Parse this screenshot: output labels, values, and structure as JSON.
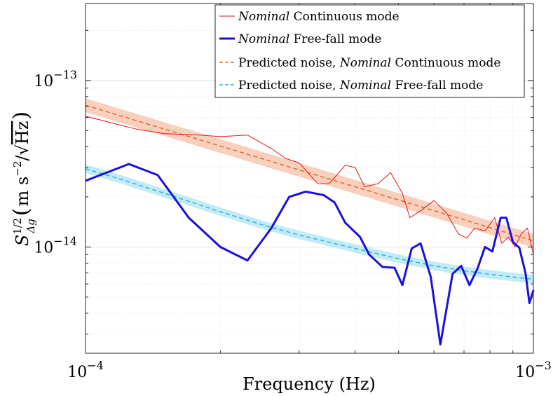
{
  "chart_data": {
    "type": "line",
    "xscale": "log",
    "yscale": "log",
    "xlim": [
      0.0001,
      0.001
    ],
    "ylim": [
      2.3e-15,
      2.9e-13
    ],
    "xlabel": "Frequency (Hz)",
    "ylabel": "S_Δg^1/2 (m s^-2/√Hz)",
    "ylabel_parts": {
      "symbol": "S",
      "superscript": "1/2",
      "subscript": "Δg",
      "units": "m s",
      "unit_exp": "−2",
      "unit_slash": "/",
      "sqrt_sign": "√",
      "sqrt_arg": "Hz",
      "paren_open": "(",
      "paren_close": ")"
    },
    "x_ticks": [
      {
        "value": 0.0001,
        "base": "10",
        "exp": "−4"
      },
      {
        "value": 0.001,
        "base": "10",
        "exp": "−3"
      }
    ],
    "y_ticks": [
      {
        "value": 1e-13,
        "base": "10",
        "exp": "−13"
      },
      {
        "value": 1e-14,
        "base": "10",
        "exp": "−14"
      }
    ],
    "grid": true,
    "legend_position": "top-right",
    "series": [
      {
        "name": "Nominal Continuous mode",
        "label_em": "Nominal",
        "label_rest": " Continuous mode",
        "color": "#ee1111",
        "style": "solid",
        "width": 1,
        "points": [
          [
            0.0001,
            6.1e-14
          ],
          [
            0.00013,
            5.1e-14
          ],
          [
            0.00015,
            4.8e-14
          ],
          [
            0.00018,
            4.7e-14
          ],
          [
            0.0002,
            4.6e-14
          ],
          [
            0.00023,
            4.7e-14
          ],
          [
            0.00026,
            3.9e-14
          ],
          [
            0.00028,
            3.4e-14
          ],
          [
            0.0003,
            3.2e-14
          ],
          [
            0.00033,
            2.4e-14
          ],
          [
            0.00035,
            2.4e-14
          ],
          [
            0.00038,
            3.1e-14
          ],
          [
            0.0004,
            3e-14
          ],
          [
            0.00042,
            2.3e-14
          ],
          [
            0.00045,
            2.4e-14
          ],
          [
            0.00048,
            2.8e-14
          ],
          [
            0.00051,
            2.1e-14
          ],
          [
            0.00053,
            1.5e-14
          ],
          [
            0.00056,
            1.65e-14
          ],
          [
            0.0006,
            1.9e-14
          ],
          [
            0.00064,
            1.6e-14
          ],
          [
            0.00068,
            1.2e-14
          ],
          [
            0.00071,
            1.13e-14
          ],
          [
            0.00074,
            1.3e-14
          ],
          [
            0.00078,
            1.25e-14
          ],
          [
            0.00082,
            1.5e-14
          ],
          [
            0.00085,
            1.05e-14
          ],
          [
            0.00088,
            1.15e-14
          ],
          [
            0.00091,
            1e-14
          ],
          [
            0.00094,
            1.2e-14
          ],
          [
            0.00097,
            1.3e-14
          ],
          [
            0.001,
            9e-15
          ]
        ]
      },
      {
        "name": "Nominal Free-fall mode",
        "label_em": "Nominal",
        "label_rest": " Free-fall mode",
        "color": "#1a10dd",
        "style": "solid",
        "width": 3,
        "points": [
          [
            0.0001,
            2.5e-14
          ],
          [
            0.000125,
            3.15e-14
          ],
          [
            0.000145,
            2.7e-14
          ],
          [
            0.00017,
            1.5e-14
          ],
          [
            0.0002,
            1e-14
          ],
          [
            0.00023,
            8.3e-15
          ],
          [
            0.00026,
            1.3e-14
          ],
          [
            0.000285,
            2e-14
          ],
          [
            0.00031,
            2.15e-14
          ],
          [
            0.00034,
            2.05e-14
          ],
          [
            0.00036,
            1.85e-14
          ],
          [
            0.00038,
            1.4e-14
          ],
          [
            0.00041,
            1.15e-14
          ],
          [
            0.00043,
            9e-15
          ],
          [
            0.00046,
            7.6e-15
          ],
          [
            0.00049,
            7.5e-15
          ],
          [
            0.00051,
            5.9e-15
          ],
          [
            0.000535,
            9.8e-15
          ],
          [
            0.00056,
            1.05e-14
          ],
          [
            0.00059,
            6.6e-15
          ],
          [
            0.00062,
            2.6e-15
          ],
          [
            0.00066,
            6.9e-15
          ],
          [
            0.00069,
            7.7e-15
          ],
          [
            0.00072,
            5.9e-15
          ],
          [
            0.00075,
            7.4e-15
          ],
          [
            0.00078,
            1e-14
          ],
          [
            0.00081,
            9.4e-15
          ],
          [
            0.000845,
            1.5e-14
          ],
          [
            0.00087,
            1.5e-14
          ],
          [
            0.0009,
            1.07e-14
          ],
          [
            0.00093,
            9.9e-15
          ],
          [
            0.00096,
            7e-15
          ],
          [
            0.00098,
            4.6e-15
          ],
          [
            0.001,
            5.5e-15
          ]
        ]
      },
      {
        "name": "Predicted noise, Nominal Continuous mode",
        "label_pre": "Predicted noise, ",
        "label_em": "Nominal",
        "label_rest": " Continuous mode",
        "color": "#e06a20",
        "band_color": "#f7c4ad",
        "style": "dashed",
        "width": 1.5,
        "model": {
          "type": "power_law",
          "y_at_xmin": 7.1e-14,
          "y_at_xmax": 1.09e-14,
          "band_factor": 1.1
        }
      },
      {
        "name": "Predicted noise, Nominal Free-fall mode",
        "label_pre": "Predicted noise, ",
        "label_em": "Nominal",
        "label_rest": " Free-fall mode",
        "color": "#22b8e2",
        "band_color": "#b4e6f4",
        "style": "dashed",
        "width": 1.5,
        "model": {
          "type": "curve",
          "points": [
            [
              0.0001,
              2.95e-14
            ],
            [
              0.00012,
              2.55e-14
            ],
            [
              0.00015,
              2.1e-14
            ],
            [
              0.0002,
              1.63e-14
            ],
            [
              0.00025,
              1.35e-14
            ],
            [
              0.0003,
              1.18e-14
            ],
            [
              0.0004,
              9.8e-15
            ],
            [
              0.0005,
              8.5e-15
            ],
            [
              0.0006,
              7.7e-15
            ],
            [
              0.0007,
              7.2e-15
            ],
            [
              0.0008,
              6.85e-15
            ],
            [
              0.0009,
              6.6e-15
            ],
            [
              0.001,
              6.4e-15
            ]
          ],
          "band_factor": 1.06
        }
      }
    ]
  }
}
